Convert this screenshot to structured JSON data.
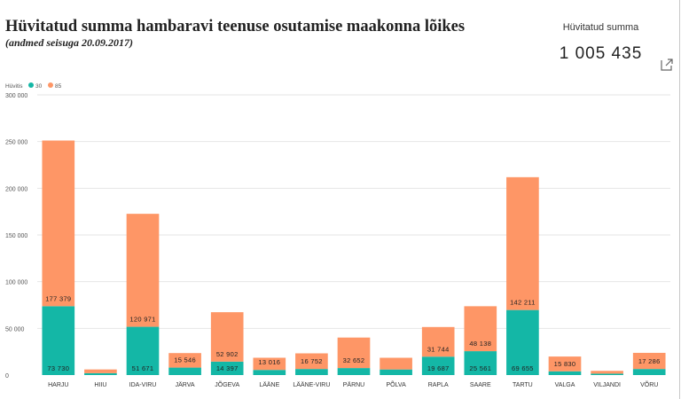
{
  "page": {
    "title": "Hüvitatud summa hambaravi teenuse osutamise maakonna lõikes",
    "subtitle": "(andmed seisuga 20.09.2017)"
  },
  "kpi": {
    "label": "Hüvitatud summa",
    "value": "1 005 435"
  },
  "colors": {
    "teal": "#14b7a6",
    "orange": "#fe9666",
    "grid": "#e6e6e6"
  },
  "chart_data": {
    "type": "bar",
    "stacked": true,
    "legend": {
      "title": "Hüvitis",
      "position": "top-left"
    },
    "categories": [
      "HARJU",
      "HIIU",
      "IDA-VIRU",
      "JÄRVA",
      "JÕGEVA",
      "LÄÄNE",
      "LÄÄNE-VIRU",
      "PÄRNU",
      "PÕLVA",
      "RAPLA",
      "SAARE",
      "TARTU",
      "VALGA",
      "VILJANDI",
      "VÕRU"
    ],
    "series": [
      {
        "name": "30",
        "color": "#14b7a6",
        "values": [
          73730,
          2000,
          51671,
          8000,
          14397,
          5500,
          6500,
          7500,
          6000,
          19687,
          25561,
          69655,
          4000,
          1500,
          6500
        ],
        "labels": [
          "73 730",
          "",
          "51 671",
          "",
          "14 397",
          "",
          "",
          "",
          "",
          "19 687",
          "25 561",
          "69 655",
          "",
          "",
          ""
        ]
      },
      {
        "name": "85",
        "color": "#fe9666",
        "values": [
          177379,
          4000,
          120971,
          15546,
          52902,
          13016,
          16752,
          32652,
          12500,
          31744,
          48138,
          142211,
          15830,
          3000,
          17286
        ],
        "labels": [
          "177 379",
          "",
          "120 971",
          "15 546",
          "52 902",
          "13 016",
          "16 752",
          "32 652",
          "",
          "31 744",
          "48 138",
          "142 211",
          "15 830",
          "",
          "17 286"
        ]
      }
    ],
    "ylim": [
      0,
      300000
    ],
    "yticks": [
      0,
      50000,
      100000,
      150000,
      200000,
      250000,
      300000
    ],
    "ytick_labels": [
      "0",
      "50 000",
      "100 000",
      "150 000",
      "200 000",
      "250 000",
      "300 000"
    ],
    "grid": true
  }
}
